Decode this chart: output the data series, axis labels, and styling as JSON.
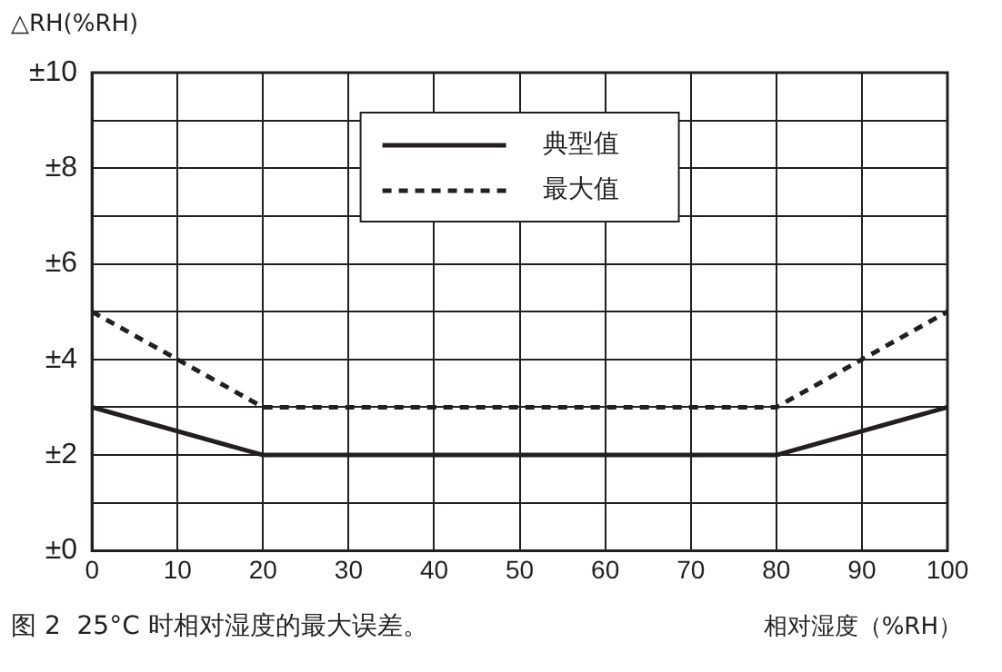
{
  "chart_data": {
    "type": "line",
    "title": "图 2  25°C 时相对湿度的最大误差。",
    "xlabel": "相对湿度（%RH）",
    "ylabel": "△RH(%RH)",
    "x": [
      0,
      20,
      80,
      100
    ],
    "series": [
      {
        "name": "典型值",
        "color": "#231f20",
        "values": [
          3,
          2,
          2,
          3
        ],
        "line_style": "solid"
      },
      {
        "name": "最大值",
        "color": "#231f20",
        "values": [
          5,
          3,
          3,
          5
        ],
        "line_style": "dashed"
      }
    ],
    "xlim": [
      0,
      100
    ],
    "xticks": [
      0,
      10,
      20,
      30,
      40,
      50,
      60,
      70,
      80,
      90,
      100
    ],
    "ylim": [
      0,
      10
    ],
    "yticks": [
      {
        "value": 0,
        "label": "±0"
      },
      {
        "value": 1,
        "label": null
      },
      {
        "value": 2,
        "label": "±2"
      },
      {
        "value": 3,
        "label": null
      },
      {
        "value": 4,
        "label": "±4"
      },
      {
        "value": 5,
        "label": null
      },
      {
        "value": 6,
        "label": "±6"
      },
      {
        "value": 7,
        "label": null
      },
      {
        "value": 8,
        "label": "±8"
      },
      {
        "value": 9,
        "label": null
      },
      {
        "value": 10,
        "label": "±10"
      }
    ],
    "grid": true,
    "legend": "top",
    "marker": "none"
  }
}
